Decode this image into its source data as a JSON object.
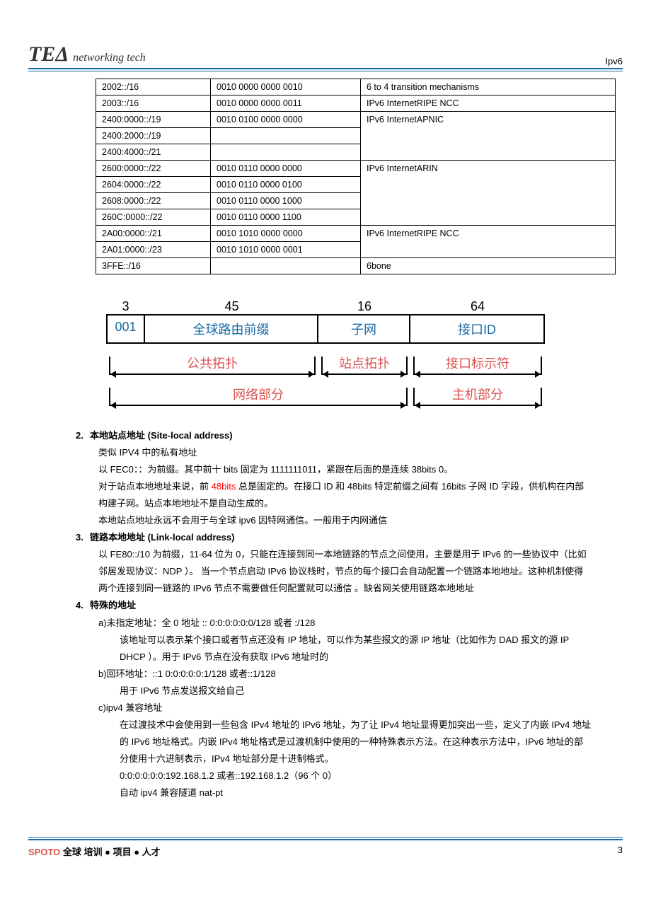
{
  "header": {
    "logo_main": "TE",
    "logo_delta": "Δ",
    "logo_sub": "networking tech",
    "right": "Ipv6"
  },
  "addr_table": {
    "rows": [
      [
        "2002::/16",
        "0010 0000 0000 0010",
        "6 to 4 transition mechanisms"
      ],
      [
        "2003::/16",
        "0010 0000 0000 0011",
        "IPv6 InternetRIPE NCC"
      ],
      [
        "2400:0000::/19",
        "0010 0100 0000 0000",
        "IPv6 InternetAPNIC"
      ],
      [
        "2400:2000::/19",
        "",
        ""
      ],
      [
        "2400:4000::/21",
        "",
        ""
      ],
      [
        "2600:0000::/22",
        "0010 0110 0000 0000",
        "IPv6 InternetARIN"
      ],
      [
        "2604:0000::/22",
        "0010 0110 0000 0100",
        ""
      ],
      [
        "2608:0000::/22",
        "0010 0110 0000 1000",
        ""
      ],
      [
        "260C:0000::/22",
        "0010 0110 0000 1100",
        ""
      ],
      [
        "2A00:0000::/21",
        "0010 1010 0000 0000",
        "IPv6 InternetRIPE NCC"
      ],
      [
        "2A01:0000::/23",
        "0010 1010 0000 0001",
        ""
      ],
      [
        "3FFE::/16",
        "",
        "6bone"
      ]
    ],
    "row_groups": [
      [
        0
      ],
      [
        1
      ],
      [
        2,
        3,
        4
      ],
      [
        5,
        6,
        7,
        8
      ],
      [
        9,
        10
      ],
      [
        11
      ]
    ]
  },
  "diagram": {
    "bits": [
      "3",
      "45",
      "16",
      "64"
    ],
    "row1": [
      "001",
      "全球路由前缀",
      "子网",
      "接口ID"
    ],
    "row2_labels": [
      "公共拓扑",
      "站点拓扑",
      "接口标示符"
    ],
    "row2_widths": [
      300,
      130,
      190
    ],
    "row3_labels": [
      "网络部分",
      "主机部分"
    ],
    "row3_widths": [
      430,
      190
    ]
  },
  "sections": {
    "s2": {
      "num": "2.",
      "title": "本地站点地址   (Site-local address)",
      "lines": [
        "类似 IPV4 中的私有地址",
        "以 FEC0：：为前缀。其中前十 bits  固定为 1111111011，紧跟在后面的是连续 38bits 0。",
        {
          "pre": "对于站点本地地址来说，前 ",
          "red": "48bits",
          "post": " 总是固定的。在接口 ID 和 48bits  特定前缀之间有 16bits  子网 ID 字段，供机构在内部构建子网。站点本地地址不是自动生成的。"
        },
        "本地站点地址永远不会用于与全球 ipv6 因特网通信。一般用于内网通信"
      ]
    },
    "s3": {
      "num": "3.",
      "title": "链路本地地址   (Link-local address)",
      "lines": [
        "以 FE80::/10 为前缀，11-64 位为 0，只能在连接到同一本地链路的节点之间使用，主要是用于 IPv6 的一些协议中（比如邻居发现协议：NDP ）。  当一个节点启动 IPv6 协议栈时，节点的每个接口会自动配置一个链路本地地址。这种机制使得两个连接到同一链路的 IPv6 节点不需要做任何配置就可以通信 。缺省网关使用链路本地地址"
      ]
    },
    "s4": {
      "num": "4.",
      "title": "特殊的地址",
      "items": [
        {
          "n": "a)",
          "head": "未指定地址：全 0 地址  ::      0:0:0:0:0:0/128   或者  :/128",
          "body": [
            "该地址可以表示某个接口或者节点还没有 IP 地址，可以作为某些报文的源 IP 地址（比如作为 DAD 报文的源 IP DHCP ）。用于 IPv6 节点在没有获取 IPv6 地址时的"
          ]
        },
        {
          "n": "b)",
          "head": "回环地址：::1        0:0:0:0:0:1/128     或者::1/128",
          "body": [
            "用于 IPv6 节点发送报文给自己"
          ]
        },
        {
          "n": "c)",
          "head": "ipv4 兼容地址",
          "body": [
            "     在过渡技术中会使用到一些包含 IPv4 地址的 IPv6 地址，为了让 IPv4 地址显得更加突出一些，定义了内嵌 IPv4 地址的 IPv6 地址格式。内嵌 IPv4 地址格式是过渡机制中使用的一种特殊表示方法。在这种表示方法中，IPv6 地址的部分使用十六进制表示，IPv4 地址部分是十进制格式。",
            "0:0:0:0:0:0:192.168.1.2 或者::192.168.1.2（96 个 0）",
            "自动 ipv4 兼容隧道  nat-pt"
          ]
        }
      ]
    }
  },
  "footer": {
    "brand": "SPOTO",
    "left_rest": " 全球  培训 ● 项目 ● 人才",
    "page": "3"
  }
}
